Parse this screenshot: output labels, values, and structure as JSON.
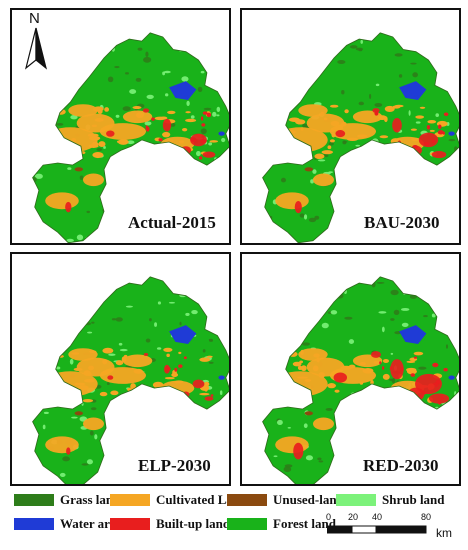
{
  "north_arrow": {
    "letter": "N"
  },
  "panels": [
    {
      "id": "actual",
      "label": "Actual-2015",
      "scenario": "actual"
    },
    {
      "id": "bau",
      "label": "BAU-2030",
      "scenario": "bau"
    },
    {
      "id": "elp",
      "label": "ELP-2030",
      "scenario": "elp"
    },
    {
      "id": "red",
      "label": "RED-2030",
      "scenario": "red"
    }
  ],
  "legend": [
    {
      "label": "Grass land",
      "color": "#2e7d1a"
    },
    {
      "label": "Cultivated Land",
      "color": "#f5a623"
    },
    {
      "label": "Unused-land",
      "color": "#8b4a0f"
    },
    {
      "label": "Shrub land",
      "color": "#7cf27a"
    },
    {
      "label": "Water area",
      "color": "#1f3bd6"
    },
    {
      "label": "Built-up land",
      "color": "#e81e1e"
    },
    {
      "label": "Forest land",
      "color": "#19b21a"
    }
  ],
  "scale_bar": {
    "ticks": [
      "0",
      "20",
      "40",
      "80"
    ],
    "unit": "km"
  }
}
